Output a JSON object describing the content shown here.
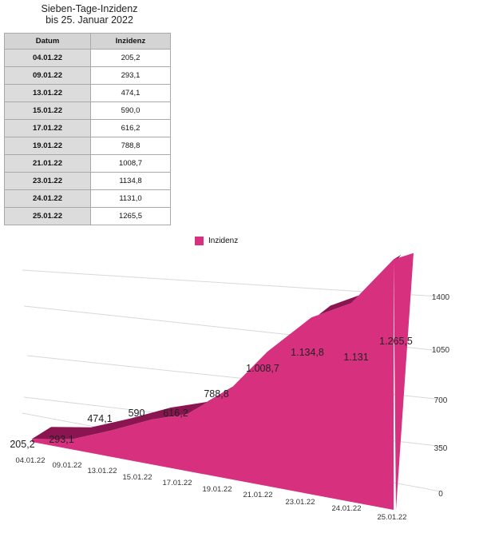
{
  "table": {
    "title_line1": "Sieben-Tage-Inzidenz",
    "title_line2": "bis 25. Januar 2022",
    "headers": [
      "Datum",
      "Inzidenz"
    ],
    "rows": [
      [
        "04.01.22",
        "205,2"
      ],
      [
        "09.01.22",
        "293,1"
      ],
      [
        "13.01.22",
        "474,1"
      ],
      [
        "15.01.22",
        "590,0"
      ],
      [
        "17.01.22",
        "616,2"
      ],
      [
        "19.01.22",
        "788,8"
      ],
      [
        "21.01.22",
        "1008,7"
      ],
      [
        "23.01.22",
        "1134,8"
      ],
      [
        "24.01.22",
        "1131,0"
      ],
      [
        "25.01.22",
        "1265,5"
      ]
    ]
  },
  "chart_data": {
    "type": "area",
    "categories": [
      "04.01.22",
      "09.01.22",
      "13.01.22",
      "15.01.22",
      "17.01.22",
      "19.01.22",
      "21.01.22",
      "23.01.22",
      "24.01.22",
      "25.01.22"
    ],
    "series": [
      {
        "name": "Inzidenz",
        "values": [
          205.2,
          293.1,
          474.1,
          590,
          616.2,
          788.8,
          1008.7,
          1134.8,
          1131,
          1265.5
        ],
        "labels": [
          "205,2",
          "293,1",
          "474,1",
          "590",
          "616,2",
          "788,8",
          "1.008,7",
          "1.134,8",
          "1.131",
          "1.265,5"
        ]
      }
    ],
    "yticks": [
      0,
      350,
      700,
      1050,
      1400
    ],
    "ylim": [
      0,
      1400
    ],
    "legend_position": "top-center",
    "grid": true,
    "colors": {
      "front": "#d6307f",
      "top": "#8a1550",
      "grid": "#d8d8d8"
    }
  }
}
